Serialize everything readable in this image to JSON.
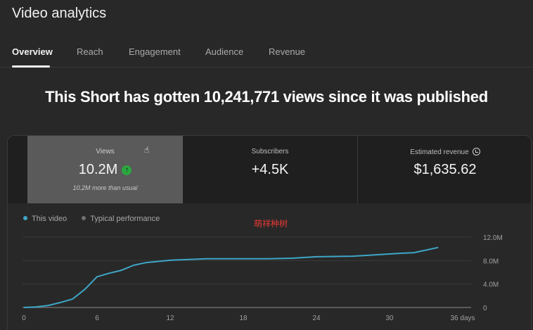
{
  "page": {
    "title": "Video analytics",
    "headline": "This Short has gotten 10,241,771 views since it was published",
    "watermark": "萌祥种树"
  },
  "tabs": [
    {
      "label": "Overview",
      "active": true
    },
    {
      "label": "Reach",
      "active": false
    },
    {
      "label": "Engagement",
      "active": false
    },
    {
      "label": "Audience",
      "active": false
    },
    {
      "label": "Revenue",
      "active": false
    }
  ],
  "metrics": {
    "views": {
      "label": "Views",
      "value": "10.2M",
      "trend_icon": "arrow-up-icon",
      "subtext": "10.2M more than usual"
    },
    "subscribers": {
      "label": "Subscribers",
      "value": "+4.5K"
    },
    "revenue": {
      "label": "Estimated revenue",
      "value": "$1,635.62",
      "icon": "clock-icon"
    }
  },
  "legend": [
    {
      "label": "This video",
      "color": "#3ea6c7"
    },
    {
      "label": "Typical performance",
      "color": "#717171"
    }
  ],
  "colors": {
    "accent_line": "#3ea6c7",
    "up_badge": "#2ba640",
    "selected_metric_bg": "#5a5a5a",
    "watermark": "#e53935"
  },
  "chart_data": {
    "type": "line",
    "title": "",
    "xlabel": "days",
    "ylabel": "Views",
    "x_ticks": [
      "0",
      "6",
      "12",
      "18",
      "24",
      "30",
      "36 days"
    ],
    "y_ticks": [
      "0",
      "4.0M",
      "8.0M",
      "12.0M"
    ],
    "xlim": [
      0,
      36
    ],
    "ylim": [
      0,
      12000000
    ],
    "grid": true,
    "legend_position": "top-left",
    "series": [
      {
        "name": "This video",
        "x": [
          0,
          1,
          2,
          3,
          4,
          5,
          6,
          7,
          8,
          9,
          10,
          12,
          13,
          15,
          20,
          22,
          24,
          27,
          29,
          31,
          32,
          34
        ],
        "values": [
          0,
          100000,
          350000,
          850000,
          1450000,
          3100000,
          5250000,
          5850000,
          6350000,
          7200000,
          7650000,
          8050000,
          8150000,
          8300000,
          8300000,
          8400000,
          8650000,
          8750000,
          9000000,
          9250000,
          9350000,
          10240000
        ]
      }
    ]
  }
}
